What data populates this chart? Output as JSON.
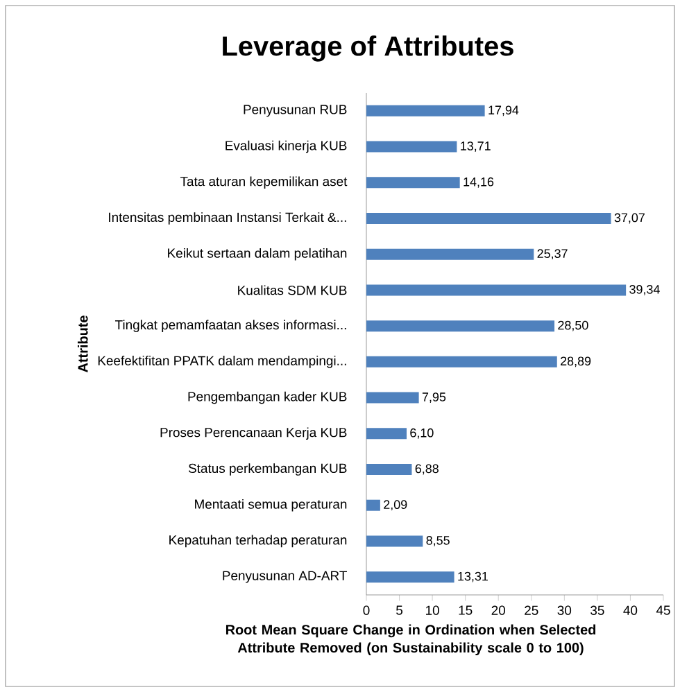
{
  "chart_data": {
    "type": "bar",
    "orientation": "horizontal",
    "title": "Leverage of Attributes",
    "xlabel": "Root Mean Square Change in Ordination when Selected Attribute Removed (on Sustainability scale 0 to 100)",
    "ylabel": "Attribute",
    "categories": [
      "Penyusunan RUB",
      "Evaluasi kinerja KUB",
      "Tata aturan kepemilikan aset",
      "Intensitas pembinaan Instansi Terkait &...",
      "Keikut sertaan dalam pelatihan",
      "Kualitas SDM KUB",
      "Tingkat pemamfaatan akses informasi...",
      "Keefektifitan PPATK dalam mendampingi...",
      "Pengembangan kader KUB",
      "Proses Perencanaan Kerja KUB",
      "Status perkembangan KUB",
      "Mentaati semua peraturan",
      "Kepatuhan terhadap peraturan",
      "Penyusunan AD-ART"
    ],
    "values": [
      17.94,
      13.71,
      14.16,
      37.07,
      25.37,
      39.34,
      28.5,
      28.89,
      7.95,
      6.1,
      6.88,
      2.09,
      8.55,
      13.31
    ],
    "value_labels": [
      "17,94",
      "13,71",
      "14,16",
      "37,07",
      "25,37",
      "39,34",
      "28,50",
      "28,89",
      "7,95",
      "6,10",
      "6,88",
      "2,09",
      "8,55",
      "13,31"
    ],
    "color": "#4f81bd",
    "xlim": [
      0,
      45
    ],
    "xticks": [
      0,
      5,
      10,
      15,
      20,
      25,
      30,
      35,
      40,
      45
    ],
    "grid": false
  }
}
